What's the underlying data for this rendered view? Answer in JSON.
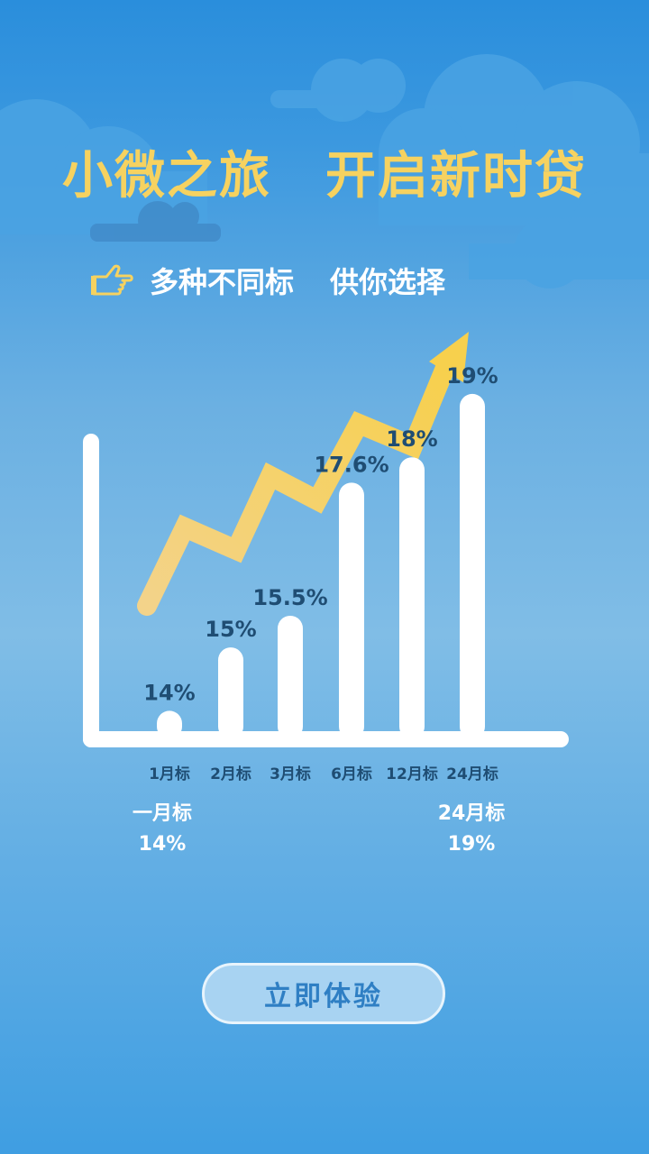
{
  "header": {
    "title_part1": "小微之旅",
    "title_part2": "开启新时贷",
    "subtitle_part1": "多种不同标",
    "subtitle_part2": "供你选择",
    "icon": "pointing-hand-icon"
  },
  "colors": {
    "accent": "#f6d260",
    "bar": "#ffffff",
    "label": "#1f4d73",
    "button_text": "#2f7fc4"
  },
  "chart_data": {
    "type": "bar",
    "categories": [
      "1月标",
      "2月标",
      "3月标",
      "6月标",
      "12月标",
      "24月标"
    ],
    "values": [
      14,
      15,
      15.5,
      17.6,
      18,
      19
    ],
    "data_labels": [
      "14%",
      "15%",
      "15.5%",
      "17.6%",
      "18%",
      "19%"
    ],
    "title": "",
    "xlabel": "",
    "ylabel": "",
    "trend_arrow": true
  },
  "summary": {
    "left_label": "一月标",
    "left_value": "14%",
    "right_label": "24月标",
    "right_value": "19%"
  },
  "cta": {
    "label": "立即体验"
  }
}
